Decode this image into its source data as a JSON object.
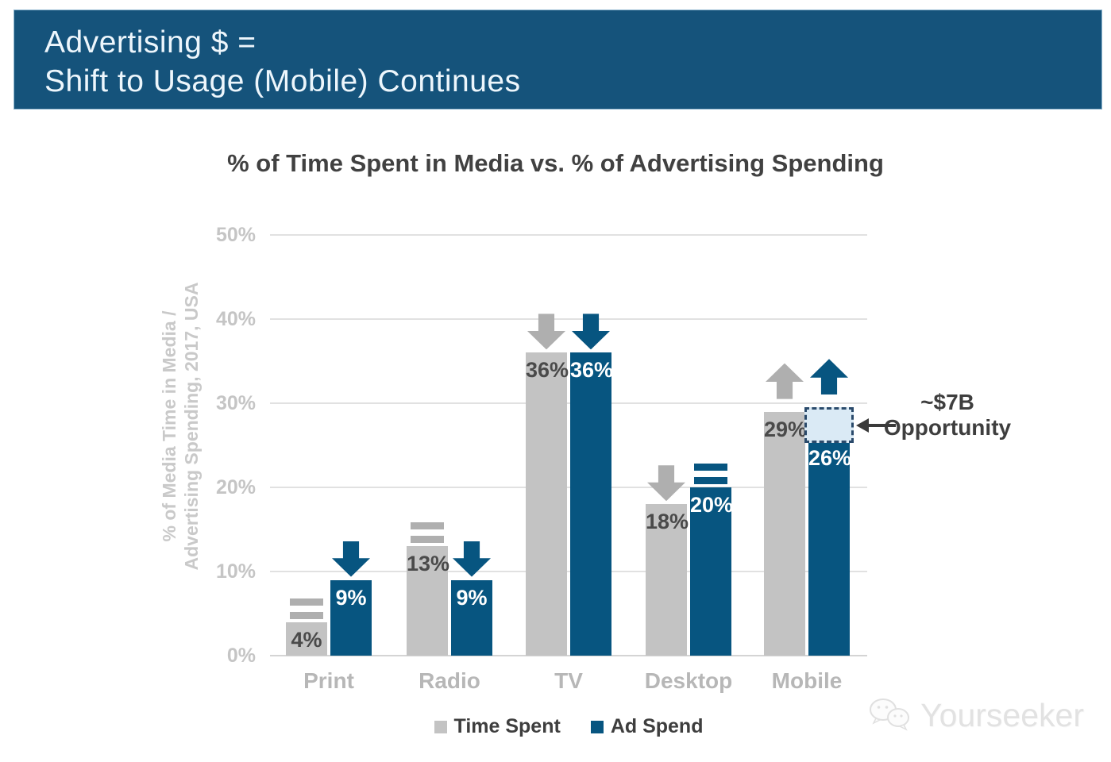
{
  "banner": {
    "line1": "Advertising $ =",
    "line2": "Shift to Usage (Mobile) Continues",
    "bg_color": "#15537B",
    "text_color": "#EDF6FC"
  },
  "chart_data": {
    "type": "bar",
    "title": "% of Time Spent in Media vs. % of Advertising Spending",
    "ylabel_line1": "% of Media Time in Media /",
    "ylabel_line2": "Advertising Spending, 2017, USA",
    "categories": [
      "Print",
      "Radio",
      "TV",
      "Desktop",
      "Mobile"
    ],
    "yticks": [
      0,
      10,
      20,
      30,
      40,
      50
    ],
    "ytick_labels": [
      "0%",
      "10%",
      "20%",
      "30%",
      "40%",
      "50%"
    ],
    "ylim": [
      0,
      50
    ],
    "grid": true,
    "legend_position": "bottom",
    "series": [
      {
        "name": "Time Spent",
        "color": "#C3C3C3",
        "label_color": "#4A4A4A",
        "values": [
          4,
          13,
          36,
          18,
          29
        ],
        "labels": [
          "4%",
          "13%",
          "36%",
          "18%",
          "29%"
        ],
        "trends": [
          "equal",
          "equal",
          "down",
          "down",
          "up"
        ],
        "trend_color": "#AFAFAF"
      },
      {
        "name": "Ad Spend",
        "color": "#075580",
        "label_color": "#FFFFFF",
        "values": [
          9,
          9,
          36,
          20,
          26
        ],
        "labels": [
          "9%",
          "9%",
          "36%",
          "20%",
          "26%"
        ],
        "trends": [
          "down",
          "down",
          "down",
          "equal",
          "up"
        ],
        "trend_color": "#075580"
      }
    ],
    "annotation": {
      "line1": "~$7B",
      "line2": "Opportunity",
      "target_category": "Mobile",
      "target_series": "Ad Spend",
      "box_value_range": [
        26,
        29.5
      ],
      "box_fill": "#DAEAF5",
      "box_border": "#2A4A6B",
      "text_color": "#3E3E3E"
    }
  },
  "legend": {
    "items": [
      {
        "label": "Time Spent",
        "color": "#C3C3C3"
      },
      {
        "label": "Ad Spend",
        "color": "#075580"
      }
    ]
  },
  "watermark": {
    "text": "Yourseeker"
  }
}
